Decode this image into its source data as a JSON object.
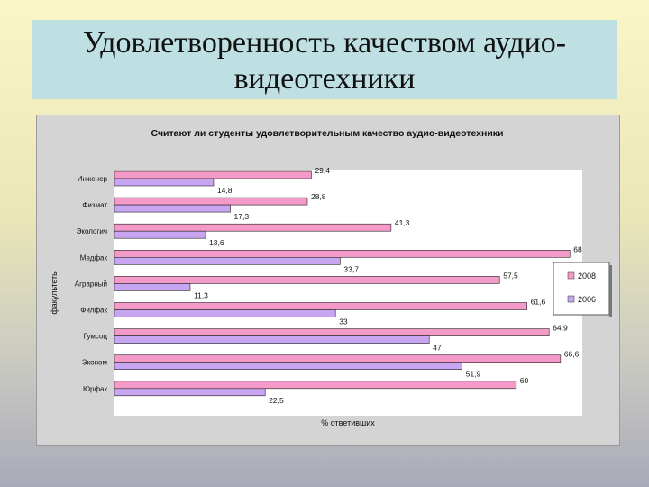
{
  "slide": {
    "title": "Удовлетворенность качеством аудио-видеотехники",
    "title_line1": "Удовлетворенность качеством аудио-",
    "title_line2": "видеотехники"
  },
  "colors": {
    "s2008": "#f49ac9",
    "s2006": "#c7a5f0",
    "plot_bg": "#ffffff",
    "panel_bg": "#d4d4d4"
  },
  "chart_data": {
    "type": "bar",
    "orientation": "horizontal",
    "title": "Считают ли студенты удовлетворительным качество аудио-видеотехники",
    "xlabel": "% ответивших",
    "ylabel": "факультеты",
    "categories": [
      "Инженер",
      "Физмат",
      "Экологич",
      "Медфак",
      "Аграрный",
      "Филфак",
      "Гумсоц",
      "Эконом",
      "Юрфак"
    ],
    "series": [
      {
        "name": "2008",
        "values": [
          29.4,
          28.8,
          41.3,
          68,
          57.5,
          61.6,
          64.9,
          66.6,
          60
        ],
        "labels": [
          "29,4",
          "28,8",
          "41,3",
          "68",
          "57,5",
          "61,6",
          "64,9",
          "66,6",
          "60"
        ]
      },
      {
        "name": "2006",
        "values": [
          14.8,
          17.3,
          13.6,
          33.7,
          11.3,
          33,
          47,
          51.9,
          22.5
        ],
        "labels": [
          "14,8",
          "17,3",
          "13,6",
          "33,7",
          "11,3",
          "33",
          "47",
          "51,9",
          "22,5"
        ]
      }
    ],
    "xlim": [
      0,
      70
    ],
    "legend": "right",
    "grid": false
  }
}
